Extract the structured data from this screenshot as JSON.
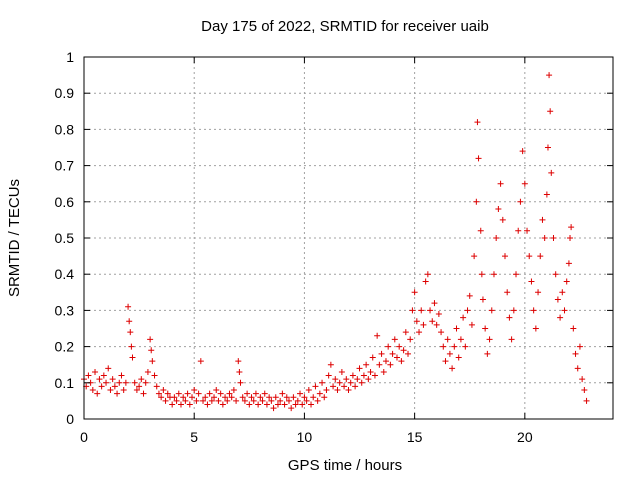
{
  "chart_data": {
    "type": "scatter",
    "title": "Day 175 of 2022, SRMTID for receiver uaib",
    "xlabel": "GPS time / hours",
    "ylabel": "SRMTID / TECUs",
    "xlim": [
      0,
      24
    ],
    "ylim": [
      0,
      1
    ],
    "xticks": [
      0,
      5,
      10,
      15,
      20
    ],
    "xtick_labels": [
      "0",
      "5",
      "10",
      "15",
      "20"
    ],
    "yticks": [
      0,
      0.1,
      0.2,
      0.3,
      0.4,
      0.5,
      0.6,
      0.7,
      0.8,
      0.9,
      1
    ],
    "ytick_labels": [
      "0",
      "0.1",
      "0.2",
      "0.3",
      "0.4",
      "0.5",
      "0.6",
      "0.7",
      "0.8",
      "0.9",
      "1"
    ],
    "grid": true,
    "marker": "+",
    "color": "#dd0000",
    "series": [
      {
        "name": "SRMTID",
        "points": [
          [
            0.0,
            0.11
          ],
          [
            0.1,
            0.09
          ],
          [
            0.2,
            0.12
          ],
          [
            0.3,
            0.1
          ],
          [
            0.4,
            0.08
          ],
          [
            0.5,
            0.13
          ],
          [
            0.6,
            0.07
          ],
          [
            0.7,
            0.11
          ],
          [
            0.8,
            0.09
          ],
          [
            0.9,
            0.12
          ],
          [
            1.0,
            0.1
          ],
          [
            1.1,
            0.14
          ],
          [
            1.2,
            0.08
          ],
          [
            1.3,
            0.11
          ],
          [
            1.4,
            0.09
          ],
          [
            1.5,
            0.07
          ],
          [
            1.6,
            0.1
          ],
          [
            1.7,
            0.12
          ],
          [
            1.8,
            0.08
          ],
          [
            1.9,
            0.1
          ],
          [
            2.0,
            0.31
          ],
          [
            2.05,
            0.27
          ],
          [
            2.1,
            0.24
          ],
          [
            2.15,
            0.2
          ],
          [
            2.2,
            0.17
          ],
          [
            2.3,
            0.1
          ],
          [
            2.4,
            0.08
          ],
          [
            2.5,
            0.09
          ],
          [
            2.6,
            0.11
          ],
          [
            2.7,
            0.07
          ],
          [
            2.8,
            0.1
          ],
          [
            2.9,
            0.13
          ],
          [
            3.0,
            0.22
          ],
          [
            3.05,
            0.19
          ],
          [
            3.1,
            0.16
          ],
          [
            3.2,
            0.12
          ],
          [
            3.3,
            0.09
          ],
          [
            3.4,
            0.07
          ],
          [
            3.5,
            0.06
          ],
          [
            3.6,
            0.08
          ],
          [
            3.7,
            0.05
          ],
          [
            3.8,
            0.07
          ],
          [
            3.9,
            0.06
          ],
          [
            4.0,
            0.04
          ],
          [
            4.1,
            0.06
          ],
          [
            4.2,
            0.05
          ],
          [
            4.3,
            0.07
          ],
          [
            4.4,
            0.04
          ],
          [
            4.5,
            0.06
          ],
          [
            4.6,
            0.05
          ],
          [
            4.7,
            0.07
          ],
          [
            4.8,
            0.04
          ],
          [
            4.9,
            0.06
          ],
          [
            5.0,
            0.08
          ],
          [
            5.1,
            0.05
          ],
          [
            5.2,
            0.07
          ],
          [
            5.3,
            0.16
          ],
          [
            5.4,
            0.05
          ],
          [
            5.5,
            0.06
          ],
          [
            5.6,
            0.04
          ],
          [
            5.7,
            0.07
          ],
          [
            5.8,
            0.05
          ],
          [
            5.9,
            0.06
          ],
          [
            6.0,
            0.08
          ],
          [
            6.1,
            0.05
          ],
          [
            6.2,
            0.07
          ],
          [
            6.3,
            0.04
          ],
          [
            6.4,
            0.06
          ],
          [
            6.5,
            0.05
          ],
          [
            6.6,
            0.07
          ],
          [
            6.7,
            0.06
          ],
          [
            6.8,
            0.08
          ],
          [
            6.9,
            0.05
          ],
          [
            7.0,
            0.16
          ],
          [
            7.05,
            0.13
          ],
          [
            7.1,
            0.1
          ],
          [
            7.2,
            0.06
          ],
          [
            7.3,
            0.05
          ],
          [
            7.4,
            0.07
          ],
          [
            7.5,
            0.04
          ],
          [
            7.6,
            0.06
          ],
          [
            7.7,
            0.05
          ],
          [
            7.8,
            0.07
          ],
          [
            7.9,
            0.04
          ],
          [
            8.0,
            0.06
          ],
          [
            8.1,
            0.05
          ],
          [
            8.2,
            0.07
          ],
          [
            8.3,
            0.04
          ],
          [
            8.4,
            0.06
          ],
          [
            8.5,
            0.05
          ],
          [
            8.6,
            0.03
          ],
          [
            8.7,
            0.06
          ],
          [
            8.8,
            0.04
          ],
          [
            8.9,
            0.05
          ],
          [
            9.0,
            0.07
          ],
          [
            9.1,
            0.04
          ],
          [
            9.2,
            0.06
          ],
          [
            9.3,
            0.05
          ],
          [
            9.4,
            0.03
          ],
          [
            9.5,
            0.06
          ],
          [
            9.6,
            0.04
          ],
          [
            9.7,
            0.05
          ],
          [
            9.8,
            0.07
          ],
          [
            9.9,
            0.04
          ],
          [
            10.0,
            0.06
          ],
          [
            10.1,
            0.05
          ],
          [
            10.2,
            0.08
          ],
          [
            10.3,
            0.04
          ],
          [
            10.4,
            0.06
          ],
          [
            10.5,
            0.09
          ],
          [
            10.6,
            0.05
          ],
          [
            10.7,
            0.07
          ],
          [
            10.8,
            0.1
          ],
          [
            10.9,
            0.06
          ],
          [
            11.0,
            0.08
          ],
          [
            11.1,
            0.12
          ],
          [
            11.2,
            0.15
          ],
          [
            11.3,
            0.09
          ],
          [
            11.4,
            0.11
          ],
          [
            11.5,
            0.08
          ],
          [
            11.6,
            0.1
          ],
          [
            11.7,
            0.13
          ],
          [
            11.8,
            0.09
          ],
          [
            11.9,
            0.11
          ],
          [
            12.0,
            0.08
          ],
          [
            12.1,
            0.1
          ],
          [
            12.2,
            0.12
          ],
          [
            12.3,
            0.09
          ],
          [
            12.4,
            0.11
          ],
          [
            12.5,
            0.14
          ],
          [
            12.6,
            0.1
          ],
          [
            12.7,
            0.12
          ],
          [
            12.8,
            0.15
          ],
          [
            12.9,
            0.11
          ],
          [
            13.0,
            0.13
          ],
          [
            13.1,
            0.17
          ],
          [
            13.2,
            0.12
          ],
          [
            13.3,
            0.23
          ],
          [
            13.4,
            0.15
          ],
          [
            13.5,
            0.18
          ],
          [
            13.6,
            0.13
          ],
          [
            13.7,
            0.16
          ],
          [
            13.8,
            0.2
          ],
          [
            13.9,
            0.15
          ],
          [
            14.0,
            0.18
          ],
          [
            14.1,
            0.22
          ],
          [
            14.2,
            0.17
          ],
          [
            14.3,
            0.2
          ],
          [
            14.4,
            0.16
          ],
          [
            14.5,
            0.19
          ],
          [
            14.6,
            0.24
          ],
          [
            14.7,
            0.18
          ],
          [
            14.8,
            0.22
          ],
          [
            14.9,
            0.3
          ],
          [
            15.0,
            0.35
          ],
          [
            15.1,
            0.27
          ],
          [
            15.2,
            0.24
          ],
          [
            15.3,
            0.3
          ],
          [
            15.4,
            0.26
          ],
          [
            15.5,
            0.38
          ],
          [
            15.6,
            0.4
          ],
          [
            15.7,
            0.3
          ],
          [
            15.8,
            0.27
          ],
          [
            15.9,
            0.32
          ],
          [
            16.0,
            0.26
          ],
          [
            16.1,
            0.29
          ],
          [
            16.2,
            0.24
          ],
          [
            16.3,
            0.2
          ],
          [
            16.4,
            0.16
          ],
          [
            16.5,
            0.22
          ],
          [
            16.6,
            0.18
          ],
          [
            16.7,
            0.14
          ],
          [
            16.8,
            0.2
          ],
          [
            16.9,
            0.25
          ],
          [
            17.0,
            0.17
          ],
          [
            17.1,
            0.22
          ],
          [
            17.2,
            0.28
          ],
          [
            17.3,
            0.2
          ],
          [
            17.4,
            0.3
          ],
          [
            17.5,
            0.34
          ],
          [
            17.6,
            0.26
          ],
          [
            17.7,
            0.45
          ],
          [
            17.8,
            0.6
          ],
          [
            17.85,
            0.82
          ],
          [
            17.9,
            0.72
          ],
          [
            18.0,
            0.52
          ],
          [
            18.05,
            0.4
          ],
          [
            18.1,
            0.33
          ],
          [
            18.2,
            0.25
          ],
          [
            18.3,
            0.18
          ],
          [
            18.4,
            0.22
          ],
          [
            18.5,
            0.3
          ],
          [
            18.6,
            0.4
          ],
          [
            18.7,
            0.5
          ],
          [
            18.8,
            0.58
          ],
          [
            18.9,
            0.65
          ],
          [
            19.0,
            0.55
          ],
          [
            19.1,
            0.45
          ],
          [
            19.2,
            0.35
          ],
          [
            19.3,
            0.28
          ],
          [
            19.4,
            0.22
          ],
          [
            19.5,
            0.3
          ],
          [
            19.6,
            0.4
          ],
          [
            19.7,
            0.52
          ],
          [
            19.8,
            0.6
          ],
          [
            19.9,
            0.74
          ],
          [
            20.0,
            0.65
          ],
          [
            20.1,
            0.52
          ],
          [
            20.2,
            0.45
          ],
          [
            20.3,
            0.38
          ],
          [
            20.4,
            0.3
          ],
          [
            20.5,
            0.25
          ],
          [
            20.6,
            0.35
          ],
          [
            20.7,
            0.45
          ],
          [
            20.8,
            0.55
          ],
          [
            20.9,
            0.5
          ],
          [
            21.0,
            0.62
          ],
          [
            21.05,
            0.75
          ],
          [
            21.1,
            0.95
          ],
          [
            21.15,
            0.85
          ],
          [
            21.2,
            0.68
          ],
          [
            21.3,
            0.5
          ],
          [
            21.4,
            0.4
          ],
          [
            21.5,
            0.33
          ],
          [
            21.6,
            0.28
          ],
          [
            21.7,
            0.35
          ],
          [
            21.8,
            0.3
          ],
          [
            21.9,
            0.38
          ],
          [
            22.0,
            0.43
          ],
          [
            22.05,
            0.5
          ],
          [
            22.1,
            0.53
          ],
          [
            22.2,
            0.25
          ],
          [
            22.3,
            0.18
          ],
          [
            22.4,
            0.14
          ],
          [
            22.5,
            0.2
          ],
          [
            22.6,
            0.11
          ],
          [
            22.7,
            0.08
          ],
          [
            22.8,
            0.05
          ]
        ]
      }
    ]
  }
}
